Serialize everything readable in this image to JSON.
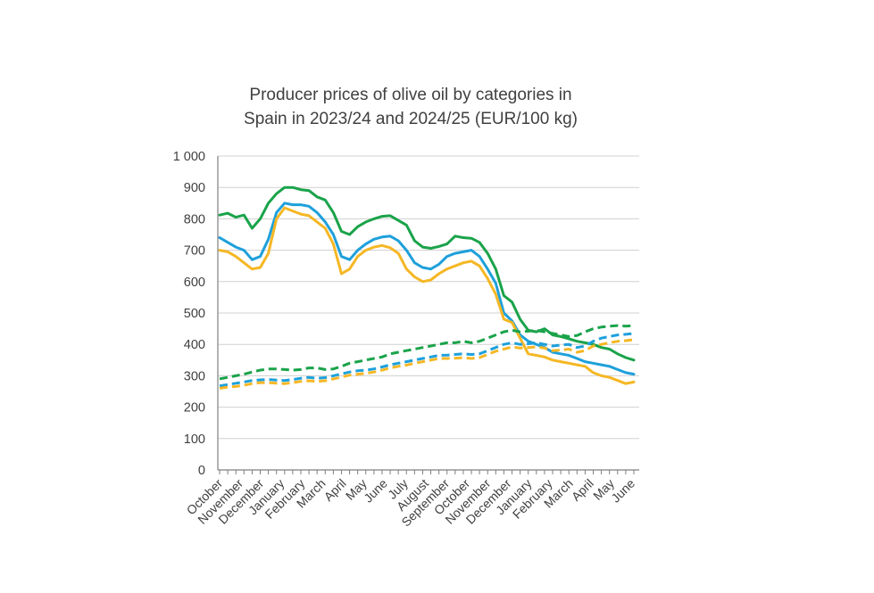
{
  "chart_data": {
    "type": "line",
    "title_lines": [
      "Producer prices of olive oil by categories in",
      "Spain in 2023/24 and 2024/25 (EUR/100 kg)"
    ],
    "xlabel": "",
    "ylabel": "",
    "ylim": [
      0,
      1000
    ],
    "y_ticks": [
      0,
      100,
      200,
      300,
      400,
      500,
      600,
      700,
      800,
      900,
      1000
    ],
    "y_tick_labels": [
      "0",
      "100",
      "200",
      "300",
      "400",
      "500",
      "600",
      "700",
      "800",
      "900",
      "1 000"
    ],
    "x_tick_labels": [
      "October",
      "November",
      "December",
      "January",
      "February",
      "March",
      "April",
      "May",
      "June",
      "July",
      "August",
      "September",
      "October",
      "November",
      "December",
      "January",
      "February",
      "March",
      "April",
      "May",
      "June"
    ],
    "grid": "horizontal",
    "legend": "none",
    "series": [
      {
        "color": "#1aa34a",
        "dashed": false,
        "values": [
          812,
          818,
          805,
          812,
          770,
          800,
          850,
          880,
          900,
          900,
          893,
          890,
          870,
          860,
          820,
          760,
          750,
          775,
          790,
          800,
          808,
          810,
          795,
          780,
          730,
          710,
          706,
          712,
          720,
          745,
          740,
          738,
          725,
          690,
          640,
          555,
          535,
          480,
          445,
          440,
          450,
          430,
          425,
          418,
          410,
          405,
          400,
          390,
          385,
          370,
          358,
          350
        ]
      },
      {
        "color": "#1ea0db",
        "dashed": false,
        "values": [
          740,
          725,
          710,
          700,
          670,
          680,
          735,
          820,
          850,
          845,
          845,
          840,
          820,
          790,
          750,
          680,
          670,
          700,
          720,
          735,
          742,
          745,
          730,
          700,
          660,
          645,
          640,
          655,
          680,
          690,
          695,
          700,
          680,
          640,
          595,
          500,
          475,
          430,
          410,
          400,
          390,
          375,
          370,
          365,
          355,
          345,
          340,
          335,
          330,
          320,
          310,
          305
        ]
      },
      {
        "color": "#f5b724",
        "dashed": false,
        "values": [
          700,
          695,
          680,
          660,
          640,
          645,
          690,
          800,
          835,
          825,
          815,
          810,
          790,
          770,
          720,
          625,
          640,
          680,
          700,
          710,
          715,
          708,
          690,
          640,
          615,
          600,
          605,
          625,
          640,
          650,
          660,
          665,
          650,
          610,
          560,
          480,
          470,
          420,
          370,
          365,
          360,
          350,
          345,
          340,
          335,
          330,
          310,
          300,
          295,
          285,
          275,
          280
        ]
      },
      {
        "color": "#1aa34a",
        "dashed": true,
        "values": [
          290,
          295,
          300,
          305,
          312,
          318,
          322,
          322,
          320,
          318,
          320,
          325,
          325,
          320,
          322,
          330,
          340,
          345,
          350,
          355,
          360,
          370,
          375,
          380,
          385,
          390,
          395,
          400,
          405,
          405,
          410,
          405,
          410,
          420,
          430,
          440,
          445,
          440,
          442,
          445,
          440,
          435,
          430,
          425,
          428,
          440,
          450,
          455,
          458,
          460,
          458,
          460
        ]
      },
      {
        "color": "#1ea0db",
        "dashed": true,
        "values": [
          268,
          272,
          276,
          280,
          285,
          287,
          288,
          286,
          285,
          288,
          292,
          295,
          292,
          294,
          300,
          306,
          312,
          316,
          318,
          322,
          328,
          335,
          340,
          345,
          350,
          355,
          360,
          365,
          366,
          368,
          370,
          368,
          370,
          380,
          390,
          400,
          405,
          400,
          402,
          405,
          400,
          395,
          398,
          400,
          390,
          395,
          410,
          420,
          425,
          430,
          432,
          435
        ]
      },
      {
        "color": "#f5b724",
        "dashed": true,
        "values": [
          260,
          264,
          266,
          270,
          275,
          278,
          278,
          276,
          275,
          278,
          282,
          284,
          282,
          284,
          290,
          296,
          302,
          305,
          308,
          312,
          318,
          325,
          330,
          334,
          340,
          345,
          350,
          355,
          355,
          356,
          358,
          355,
          358,
          368,
          378,
          385,
          392,
          388,
          390,
          392,
          388,
          380,
          382,
          385,
          375,
          380,
          395,
          400,
          405,
          410,
          412,
          415
        ]
      }
    ]
  }
}
